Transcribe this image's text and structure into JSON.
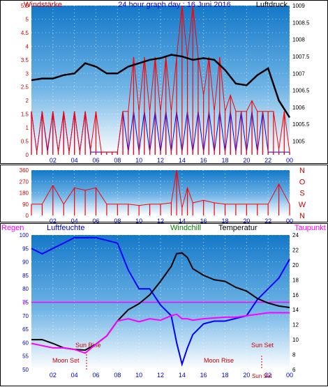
{
  "chart_data": [
    {
      "type": "line",
      "title": "24 hour graph day : 16 Juni 2016",
      "ylabel_left": "Windstärke",
      "ylabel_right": "Luftdruck",
      "x_ticks": [
        "02",
        "04",
        "06",
        "08",
        "10",
        "12",
        "14",
        "16",
        "18",
        "20",
        "22",
        "00"
      ],
      "y_left_ticks": [
        "0",
        "0.5",
        "1",
        "1.5",
        "2",
        "2.5",
        "3",
        "3.5",
        "4",
        "4.5",
        "5",
        "5.5"
      ],
      "y_right_ticks": [
        "1005",
        "1005.5",
        "1006",
        "1006.5",
        "1007",
        "1007.5",
        "1008",
        "1008.5",
        "1009"
      ],
      "ylim_left": [
        0,
        5.5
      ],
      "ylim_right": [
        1004.6,
        1009
      ],
      "series": [
        {
          "name": "Luftdruck",
          "color": "#000000",
          "x": [
            0,
            1,
            2,
            3,
            4,
            5,
            6,
            7,
            8,
            9,
            10,
            11,
            12,
            13,
            14,
            15,
            16,
            17,
            18,
            19,
            20,
            21,
            22,
            23,
            24
          ],
          "values": [
            1006.8,
            1006.85,
            1006.85,
            1006.95,
            1007.0,
            1007.3,
            1007.2,
            1007.0,
            1007.0,
            1007.2,
            1007.3,
            1007.4,
            1007.45,
            1007.55,
            1007.5,
            1007.4,
            1007.45,
            1007.4,
            1007.1,
            1006.7,
            1006.65,
            1006.95,
            1007.15,
            1006.2,
            1005.7
          ]
        },
        {
          "name": "Windstärke",
          "color": "#ff0000",
          "x": [
            0,
            0.5,
            1,
            1.5,
            2,
            2.5,
            3,
            3.5,
            4,
            4.5,
            5,
            5.5,
            6,
            6.5,
            7,
            7.5,
            8,
            8.5,
            9,
            9.5,
            10,
            10.5,
            11,
            11.5,
            12,
            12.5,
            13,
            13.5,
            14,
            14.5,
            15,
            15.5,
            16,
            16.5,
            17,
            17.5,
            18,
            18.5,
            19,
            19.5,
            20,
            20.5,
            21,
            21.5,
            22,
            22.5,
            23,
            23.5,
            24
          ],
          "values": [
            1.6,
            0.1,
            1.6,
            0.2,
            1.6,
            0.1,
            1.6,
            0.1,
            1.6,
            0.1,
            1.6,
            0.2,
            1.6,
            0.1,
            0.1,
            0.1,
            0.1,
            1.6,
            1.6,
            3.6,
            1.6,
            3.6,
            1.6,
            3.6,
            1.6,
            3.6,
            1.6,
            3.6,
            5.5,
            3.6,
            5.5,
            3.6,
            2.2,
            3.6,
            1.6,
            3.6,
            1.6,
            2.2,
            1.6,
            1.6,
            1.6,
            2.0,
            1.6,
            1.6,
            1.6,
            1.6,
            0.2,
            1.6,
            0.1
          ]
        },
        {
          "name": "Windrichtung",
          "color": "#0000ff",
          "x": [
            0,
            0.5,
            1,
            1.5,
            2,
            2.5,
            3,
            3.5,
            4,
            4.5,
            5,
            5.5,
            6,
            6.5,
            7,
            7.5,
            8,
            8.5,
            9,
            9.5,
            10,
            10.5,
            11,
            11.5,
            12,
            12.5,
            13,
            13.5,
            14,
            14.5,
            15,
            15.5,
            16,
            16.5,
            17,
            17.5,
            18,
            18.5,
            19,
            19.5,
            20,
            20.5,
            21,
            21.5,
            22,
            22.5,
            23,
            23.5,
            24
          ],
          "values": [
            1.6,
            0.1,
            1.6,
            0.1,
            1.6,
            0.1,
            1.6,
            0.1,
            1.6,
            0.1,
            1.6,
            0.1,
            0.1,
            0.1,
            0.1,
            0.1,
            0.1,
            1.6,
            0.1,
            1.6,
            0.1,
            1.6,
            0.1,
            1.6,
            0.1,
            1.6,
            0.1,
            1.6,
            0.1,
            1.6,
            0.1,
            1.6,
            0.1,
            1.6,
            0.1,
            1.6,
            0.1,
            1.6,
            0.1,
            1.6,
            0.1,
            1.6,
            0.1,
            1.6,
            0.1,
            0.1,
            0.1,
            0.1,
            0.1
          ]
        }
      ]
    },
    {
      "type": "line",
      "title": "",
      "y_left_ticks": [
        "0",
        "90",
        "180",
        "270",
        "360"
      ],
      "y_right_labels": [
        "N",
        "W",
        "S",
        "O",
        "N"
      ],
      "ylim": [
        0,
        360
      ],
      "x_ticks": [
        "02",
        "04",
        "06",
        "08",
        "10",
        "12",
        "14",
        "16",
        "18",
        "20",
        "22",
        "00"
      ],
      "series": [
        {
          "name": "Windrichtung",
          "color": "#ff0000",
          "x": [
            0,
            1,
            2,
            3,
            4,
            5,
            6,
            7,
            8,
            9,
            10,
            11,
            12,
            13,
            13.5,
            14,
            14.5,
            15,
            16,
            17,
            18,
            19,
            20,
            21,
            22,
            23,
            24
          ],
          "values": [
            90,
            90,
            240,
            90,
            220,
            200,
            220,
            90,
            90,
            90,
            80,
            90,
            90,
            100,
            360,
            60,
            220,
            100,
            120,
            100,
            90,
            90,
            90,
            90,
            90,
            250,
            90
          ]
        }
      ]
    },
    {
      "type": "line",
      "title": "",
      "legend": [
        "Regen",
        "Luftfeuchte",
        "Windchill",
        "Temperatur",
        "Taupunkt"
      ],
      "y_left_ticks": [
        "50",
        "55",
        "60",
        "65",
        "70",
        "75",
        "80",
        "85",
        "90",
        "95",
        "100"
      ],
      "y_right_ticks": [
        "6",
        "8",
        "10",
        "12",
        "14",
        "16",
        "18",
        "20",
        "22",
        "24"
      ],
      "ylim_left": [
        50,
        100
      ],
      "ylim_right": [
        6,
        24
      ],
      "zero_line_label": "0",
      "annotations": [
        "Sun Rise",
        "Moon Set",
        "Moon Rise",
        "Sun Set",
        "Sun Set"
      ],
      "x_ticks": [
        "02",
        "04",
        "06",
        "08",
        "10",
        "12",
        "14",
        "16",
        "18",
        "20",
        "22",
        "00"
      ],
      "series": [
        {
          "name": "Luftfeuchte",
          "color": "#0000ff",
          "x": [
            0,
            1,
            2,
            3,
            4,
            5,
            6,
            7,
            8,
            9,
            10,
            11,
            12,
            13,
            13.5,
            14,
            14.5,
            15,
            16,
            17,
            18,
            19,
            20,
            21,
            22,
            23,
            24
          ],
          "values": [
            95,
            93,
            95,
            97,
            99,
            99,
            99,
            98,
            97,
            87,
            80,
            80,
            74,
            70,
            60,
            52,
            58,
            63,
            67,
            68,
            68,
            69,
            70,
            76,
            80,
            84,
            91
          ]
        },
        {
          "name": "Temperatur",
          "color": "#000000",
          "x": [
            0,
            1,
            2,
            3,
            4,
            5,
            6,
            7,
            8,
            9,
            10,
            11,
            12,
            13,
            13.5,
            14,
            14.5,
            15,
            16,
            17,
            18,
            19,
            20,
            21,
            22,
            23,
            24
          ],
          "values": [
            10,
            10,
            9.5,
            8.9,
            8.7,
            8.6,
            9.4,
            10.5,
            12.5,
            14,
            14.8,
            16,
            17.8,
            19.8,
            21.5,
            21.6,
            21,
            19.5,
            18.6,
            18,
            17.8,
            17,
            16.5,
            15.5,
            14.9,
            14.5,
            14.3
          ]
        },
        {
          "name": "Taupunkt",
          "color": "#ff00ff",
          "x": [
            0,
            1,
            2,
            3,
            4,
            5,
            6,
            7,
            8,
            9,
            10,
            11,
            12,
            13,
            13.5,
            14,
            14.5,
            15,
            16,
            17,
            18,
            19,
            20,
            21,
            22,
            23,
            24
          ],
          "values": [
            9.5,
            9.2,
            8.9,
            8.9,
            8.7,
            8.2,
            9.4,
            10.5,
            12.5,
            12.8,
            12.4,
            12.8,
            12.6,
            13.2,
            13.4,
            12.8,
            12.8,
            12.6,
            12.8,
            12.9,
            13,
            13,
            13.2,
            13.4,
            13.6,
            13.6,
            13.6
          ]
        }
      ]
    }
  ],
  "colors": {
    "pressure": "#000000",
    "wind": "#ff0000",
    "direction_secondary": "#0000ff",
    "humidity": "#0000ff",
    "temperature": "#000000",
    "dewpoint": "#ff00ff",
    "windchill": "#008000",
    "rain": "#ff00ff",
    "sky_top": "#1e8ad6",
    "sky_bottom": "#ffffff"
  }
}
